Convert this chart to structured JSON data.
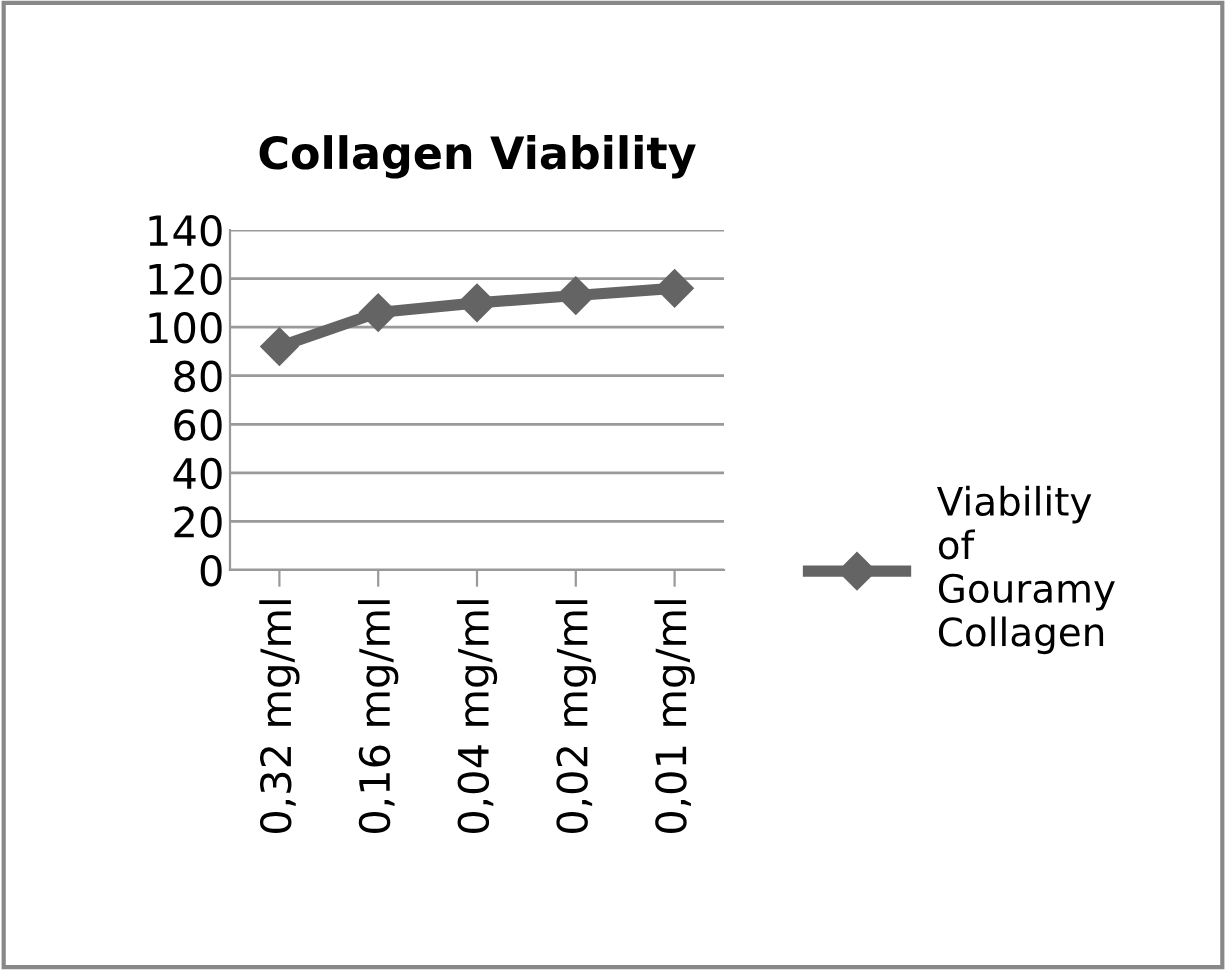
{
  "chart_data": {
    "type": "line",
    "title": "Collagen Viability",
    "categories": [
      "0,32 mg/ml",
      "0,16 mg/ml",
      "0,04 mg/ml",
      "0,02 mg/ml",
      "0,01 mg/ml"
    ],
    "series": [
      {
        "name": "Viability of Gouramy Collagen",
        "color": "#646464",
        "values": [
          92,
          106,
          110,
          113,
          116
        ]
      }
    ],
    "ylim": [
      0,
      140
    ],
    "yticks": [
      0,
      20,
      40,
      60,
      80,
      100,
      120,
      140
    ],
    "grid": "y",
    "legend": "right",
    "marker": "diamond",
    "line_style": "solid"
  }
}
